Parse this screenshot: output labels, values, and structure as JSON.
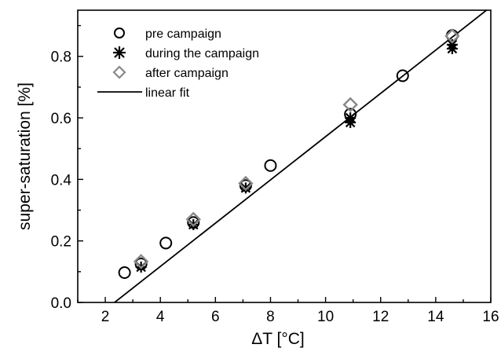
{
  "chart_data": {
    "type": "scatter",
    "title": "",
    "xlabel": "ΔT [°C]",
    "ylabel": "super-saturation [%]",
    "xlim": [
      1,
      16
    ],
    "ylim": [
      0,
      0.95
    ],
    "xticks": [
      "2",
      "4",
      "6",
      "8",
      "10",
      "12",
      "14",
      "16"
    ],
    "yticks": [
      "0.0",
      "0.2",
      "0.4",
      "0.6",
      "0.8"
    ],
    "grid": false,
    "legend_position": "top-left",
    "series": [
      {
        "name": "pre campaign",
        "marker": "circle",
        "color": "#000000",
        "x": [
          2.7,
          3.3,
          4.2,
          5.2,
          7.1,
          8.0,
          10.9,
          12.8,
          14.6
        ],
        "y": [
          0.097,
          0.125,
          0.193,
          0.26,
          0.38,
          0.445,
          0.612,
          0.737,
          0.868
        ]
      },
      {
        "name": "during the campaign",
        "marker": "asterisk",
        "color": "#000000",
        "x": [
          3.3,
          5.2,
          7.1,
          10.9,
          10.9,
          14.6,
          14.6
        ],
        "y": [
          0.115,
          0.253,
          0.372,
          0.585,
          0.6,
          0.825,
          0.838
        ]
      },
      {
        "name": "after campaign",
        "marker": "diamond",
        "color": "#888888",
        "x": [
          3.3,
          5.2,
          7.1,
          10.9,
          14.6
        ],
        "y": [
          0.133,
          0.27,
          0.387,
          0.643,
          0.866
        ]
      },
      {
        "name": "linear fit",
        "marker": "line",
        "color": "#000000",
        "x": [
          1.0,
          16.0
        ],
        "y": [
          -0.094,
          0.961
        ]
      }
    ]
  }
}
